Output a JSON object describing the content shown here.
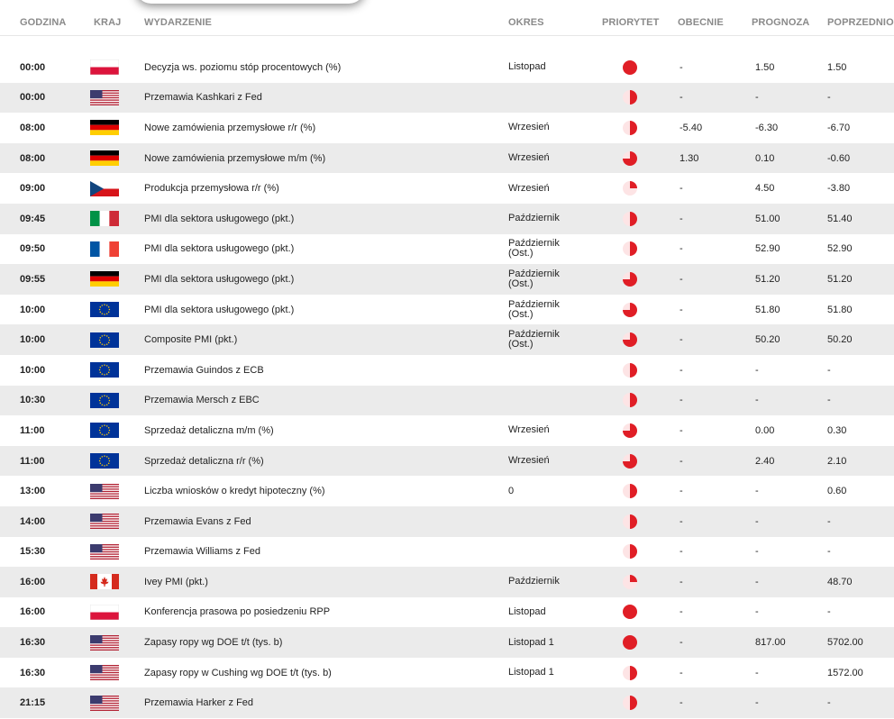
{
  "headers": {
    "time": "GODZINA",
    "country": "KRAJ",
    "event": "WYDARZENIE",
    "period": "OKRES",
    "priority": "PRIORYTET",
    "actual": "OBECNIE",
    "forecast": "PROGNOZA",
    "previous": "POPRZEDNIO"
  },
  "colors": {
    "priority_red": "#e01e26",
    "priority_light": "#fde4e5",
    "row_alt": "#ebebeb"
  },
  "rows": [
    {
      "time": "00:00",
      "flag": "pl",
      "event": "Decyzja ws. poziomu stóp procentowych (%)",
      "period": "Listopad",
      "priority": 1.0,
      "actual": "-",
      "forecast": "1.50",
      "previous": "1.50"
    },
    {
      "time": "00:00",
      "flag": "us",
      "event": "Przemawia Kashkari z Fed",
      "period": "",
      "priority": 0.5,
      "actual": "-",
      "forecast": "-",
      "previous": "-"
    },
    {
      "time": "08:00",
      "flag": "de",
      "event": "Nowe zamówienia przemysłowe r/r (%)",
      "period": "Wrzesień",
      "priority": 0.5,
      "actual": "-5.40",
      "forecast": "-6.30",
      "previous": "-6.70"
    },
    {
      "time": "08:00",
      "flag": "de",
      "event": "Nowe zamówienia przemysłowe m/m (%)",
      "period": "Wrzesień",
      "priority": 0.75,
      "actual": "1.30",
      "forecast": "0.10",
      "previous": "-0.60"
    },
    {
      "time": "09:00",
      "flag": "cz",
      "event": "Produkcja przemysłowa r/r (%)",
      "period": "Wrzesień",
      "priority": 0.25,
      "actual": "-",
      "forecast": "4.50",
      "previous": "-3.80"
    },
    {
      "time": "09:45",
      "flag": "it",
      "event": "PMI dla sektora usługowego (pkt.)",
      "period": "Październik",
      "priority": 0.5,
      "actual": "-",
      "forecast": "51.00",
      "previous": "51.40"
    },
    {
      "time": "09:50",
      "flag": "fr",
      "event": "PMI dla sektora usługowego (pkt.)",
      "period": "Październik (Ost.)",
      "priority": 0.5,
      "actual": "-",
      "forecast": "52.90",
      "previous": "52.90"
    },
    {
      "time": "09:55",
      "flag": "de",
      "event": "PMI dla sektora usługowego (pkt.)",
      "period": "Październik (Ost.)",
      "priority": 0.75,
      "actual": "-",
      "forecast": "51.20",
      "previous": "51.20"
    },
    {
      "time": "10:00",
      "flag": "eu",
      "event": "PMI dla sektora usługowego (pkt.)",
      "period": "Październik (Ost.)",
      "priority": 0.75,
      "actual": "-",
      "forecast": "51.80",
      "previous": "51.80"
    },
    {
      "time": "10:00",
      "flag": "eu",
      "event": "Composite PMI (pkt.)",
      "period": "Październik (Ost.)",
      "priority": 0.75,
      "actual": "-",
      "forecast": "50.20",
      "previous": "50.20"
    },
    {
      "time": "10:00",
      "flag": "eu",
      "event": "Przemawia Guindos z ECB",
      "period": "",
      "priority": 0.5,
      "actual": "-",
      "forecast": "-",
      "previous": "-"
    },
    {
      "time": "10:30",
      "flag": "eu",
      "event": "Przemawia Mersch z EBC",
      "period": "",
      "priority": 0.5,
      "actual": "-",
      "forecast": "-",
      "previous": "-"
    },
    {
      "time": "11:00",
      "flag": "eu",
      "event": "Sprzedaż detaliczna m/m (%)",
      "period": "Wrzesień",
      "priority": 0.75,
      "actual": "-",
      "forecast": "0.00",
      "previous": "0.30"
    },
    {
      "time": "11:00",
      "flag": "eu",
      "event": "Sprzedaż detaliczna r/r (%)",
      "period": "Wrzesień",
      "priority": 0.75,
      "actual": "-",
      "forecast": "2.40",
      "previous": "2.10"
    },
    {
      "time": "13:00",
      "flag": "us",
      "event": "Liczba wniosków o kredyt hipoteczny (%)",
      "period": "0",
      "priority": 0.5,
      "actual": "-",
      "forecast": "-",
      "previous": "0.60"
    },
    {
      "time": "14:00",
      "flag": "us",
      "event": "Przemawia Evans z Fed",
      "period": "",
      "priority": 0.5,
      "actual": "-",
      "forecast": "-",
      "previous": "-"
    },
    {
      "time": "15:30",
      "flag": "us",
      "event": "Przemawia Williams z Fed",
      "period": "",
      "priority": 0.5,
      "actual": "-",
      "forecast": "-",
      "previous": "-"
    },
    {
      "time": "16:00",
      "flag": "ca",
      "event": "Ivey PMI (pkt.)",
      "period": "Październik",
      "priority": 0.25,
      "actual": "-",
      "forecast": "-",
      "previous": "48.70"
    },
    {
      "time": "16:00",
      "flag": "pl",
      "event": "Konferencja prasowa po posiedzeniu RPP",
      "period": "Listopad",
      "priority": 1.0,
      "actual": "-",
      "forecast": "-",
      "previous": "-"
    },
    {
      "time": "16:30",
      "flag": "us",
      "event": "Zapasy ropy wg DOE t/t (tys. b)",
      "period": "Listopad 1",
      "priority": 1.0,
      "actual": "-",
      "forecast": "817.00",
      "previous": "5702.00"
    },
    {
      "time": "16:30",
      "flag": "us",
      "event": "Zapasy ropy w Cushing wg DOE t/t (tys. b)",
      "period": "Listopad 1",
      "priority": 0.5,
      "actual": "-",
      "forecast": "-",
      "previous": "1572.00"
    },
    {
      "time": "21:15",
      "flag": "us",
      "event": "Przemawia Harker z Fed",
      "period": "",
      "priority": 0.5,
      "actual": "-",
      "forecast": "-",
      "previous": "-"
    }
  ]
}
